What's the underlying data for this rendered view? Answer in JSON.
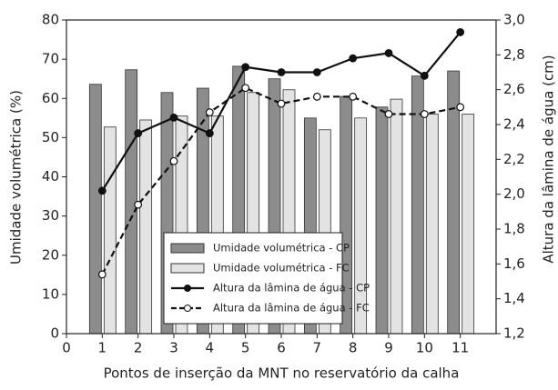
{
  "chart_data": {
    "type": "bar-line",
    "x_label": "Pontos de inserção da MNT no reservatório da calha",
    "y_label": "Umidade volumétrica (%)",
    "y2_label": "Altura da lâmina de água (cm)",
    "x": [
      1,
      2,
      3,
      4,
      5,
      6,
      7,
      8,
      9,
      10,
      11
    ],
    "xlim": [
      0,
      12
    ],
    "xticks": [
      0,
      1,
      2,
      3,
      4,
      5,
      6,
      7,
      8,
      9,
      10,
      11
    ],
    "ylim": [
      0,
      80
    ],
    "yticks": [
      0,
      10,
      20,
      30,
      40,
      50,
      60,
      70,
      80
    ],
    "y2lim": [
      1.2,
      3.0
    ],
    "y2ticks": [
      {
        "value": 1.2,
        "label": "1,2"
      },
      {
        "value": 1.4,
        "label": "1,4"
      },
      {
        "value": 1.6,
        "label": "1,6"
      },
      {
        "value": 1.8,
        "label": "1,8"
      },
      {
        "value": 2.0,
        "label": "2,0"
      },
      {
        "value": 2.2,
        "label": "2,2"
      },
      {
        "value": 2.4,
        "label": "2,4"
      },
      {
        "value": 2.6,
        "label": "2,6"
      },
      {
        "value": 2.8,
        "label": "2,8"
      },
      {
        "value": 3.0,
        "label": "3,0"
      }
    ],
    "legend": "bottom-center",
    "series": [
      {
        "name": "Umidade volumétrica - CP",
        "kind": "bar",
        "color": "#8c8c8c",
        "values": [
          63.6,
          67.3,
          61.5,
          62.6,
          68.2,
          65,
          55,
          60.5,
          57.8,
          65.7,
          67
        ]
      },
      {
        "name": "Umidade volumétrica - FC",
        "kind": "bar",
        "color": "#e3e3e3",
        "values": [
          52.7,
          54.5,
          55.5,
          55.5,
          61.5,
          62.2,
          52,
          55,
          59.8,
          56,
          56
        ]
      },
      {
        "name": "Altura da lâmina de água - CP",
        "kind": "line",
        "axis": "y2",
        "color": "#111111",
        "marker": "filled",
        "values": [
          2.02,
          2.35,
          2.44,
          2.35,
          2.73,
          2.7,
          2.7,
          2.78,
          2.81,
          2.68,
          2.93
        ]
      },
      {
        "name": "Altura da lâmina de água - FC",
        "kind": "line",
        "axis": "y2",
        "color": "#111111",
        "marker": "open",
        "dashed": true,
        "values": [
          1.54,
          1.94,
          2.19,
          2.47,
          2.61,
          2.52,
          2.56,
          2.56,
          2.46,
          2.46,
          2.5
        ]
      }
    ]
  }
}
